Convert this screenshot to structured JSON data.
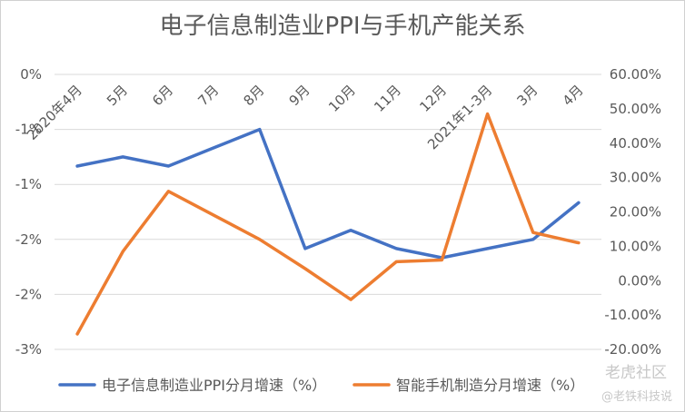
{
  "chart_data": {
    "type": "line",
    "title": "电子信息制造业PPI与手机产能关系",
    "categories": [
      "2020年4月",
      "5月",
      "6月",
      "7月",
      "8月",
      "9月",
      "10月",
      "11月",
      "12月",
      "2021年1-3月",
      "3月",
      "4月"
    ],
    "y_left": {
      "tick_labels": [
        "0%",
        "-1%",
        "-1%",
        "-2%",
        "-2%",
        "-3%"
      ],
      "range": [
        -3.0,
        0.0
      ]
    },
    "y_right": {
      "tick_labels": [
        "60.00%",
        "50.00%",
        "40.00%",
        "30.00%",
        "20.00%",
        "10.00%",
        "0.00%",
        "-10.00%",
        "-20.00%"
      ],
      "range": [
        -20.0,
        60.0
      ]
    },
    "series": [
      {
        "name": "电子信息制造业PPI分月增速（%）",
        "axis": "left",
        "color": "#4472C4",
        "values": [
          -1.0,
          -0.9,
          -1.0,
          -0.8,
          -0.6,
          -1.9,
          -1.7,
          -1.9,
          -2.0,
          -1.9,
          -1.8,
          -1.4
        ]
      },
      {
        "name": "智能手机制造分月增速（%）",
        "axis": "right",
        "color": "#ED7D31",
        "values": [
          -15.5,
          8.5,
          26.0,
          19.0,
          12.0,
          3.5,
          -5.5,
          5.5,
          6.0,
          48.5,
          14.0,
          11.0
        ]
      }
    ],
    "grid": true,
    "legend_position": "bottom"
  },
  "watermark": {
    "line1": "老虎社区",
    "line2": "@老铁科技说"
  }
}
